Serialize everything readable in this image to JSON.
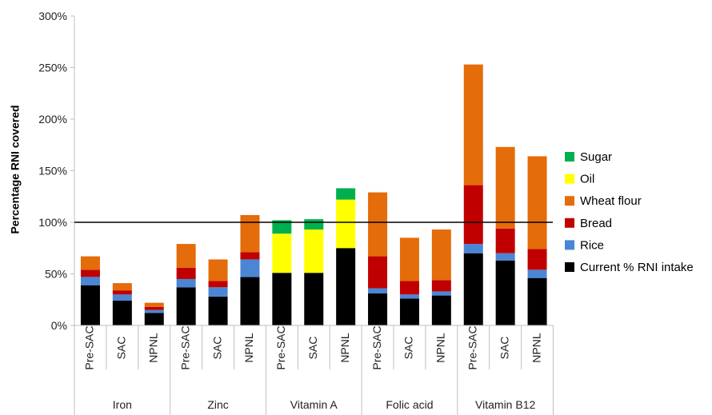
{
  "chart_data": {
    "type": "bar",
    "stacked": true,
    "ylabel": "Percentage RNI covered",
    "ylim": [
      0,
      300
    ],
    "yticks": [
      "0%",
      "50%",
      "100%",
      "150%",
      "200%",
      "250%",
      "300%"
    ],
    "reference_line": 100,
    "groups": [
      {
        "name": "Iron",
        "categories": [
          "Pre-SAC",
          "SAC",
          "NPNL"
        ]
      },
      {
        "name": "Zinc",
        "categories": [
          "Pre-SAC",
          "SAC",
          "NPNL"
        ]
      },
      {
        "name": "Vitamin A",
        "categories": [
          "Pre-SAC",
          "SAC",
          "NPNL"
        ]
      },
      {
        "name": "Folic acid",
        "categories": [
          "Pre-SAC",
          "SAC",
          "NPNL"
        ]
      },
      {
        "name": "Vitamin B12",
        "categories": [
          "Pre-SAC",
          "SAC",
          "NPNL"
        ]
      }
    ],
    "series": [
      {
        "name": "Current % RNI intake",
        "color": "#000000",
        "values": [
          39,
          24,
          12,
          37,
          28,
          47,
          51,
          51,
          75,
          31,
          26,
          29,
          70,
          63,
          46
        ]
      },
      {
        "name": "Rice",
        "color": "#4a86d4",
        "values": [
          8,
          6,
          3,
          8,
          9,
          17,
          0,
          0,
          0,
          5,
          4,
          4,
          9,
          7,
          8
        ]
      },
      {
        "name": "Bread",
        "color": "#c00000",
        "values": [
          7,
          4,
          3,
          11,
          6,
          7,
          0,
          0,
          0,
          31,
          13,
          11,
          57,
          24,
          20
        ]
      },
      {
        "name": "Wheat flour",
        "color": "#e46c0a",
        "values": [
          13,
          7,
          4,
          23,
          21,
          36,
          0,
          0,
          0,
          62,
          42,
          49,
          117,
          79,
          90
        ]
      },
      {
        "name": "Oil",
        "color": "#ffff00",
        "values": [
          0,
          0,
          0,
          0,
          0,
          0,
          38,
          42,
          47,
          0,
          0,
          0,
          0,
          0,
          0
        ]
      },
      {
        "name": "Sugar",
        "color": "#00b050",
        "values": [
          0,
          0,
          0,
          0,
          0,
          0,
          13,
          10,
          11,
          0,
          0,
          0,
          0,
          0,
          0
        ]
      }
    ],
    "legend": {
      "position": "right",
      "order": [
        "Sugar",
        "Oil",
        "Wheat flour",
        "Bread",
        "Rice",
        "Current % RNI intake"
      ]
    },
    "grid": false
  }
}
